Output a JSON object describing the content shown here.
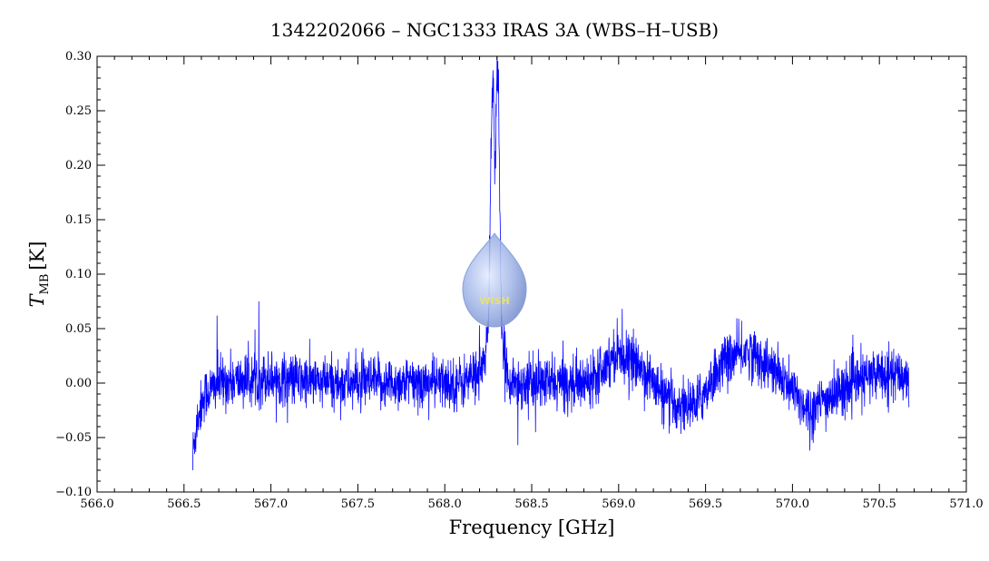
{
  "chart_data": {
    "type": "line",
    "title": "1342202066 – NGC1333 IRAS 3A (WBS–H–USB)",
    "xlabel": "Frequency [GHz]",
    "ylabel_main": "T",
    "ylabel_sub": "MB",
    "ylabel_unit": "[K]",
    "xlim": [
      566.0,
      571.0
    ],
    "ylim": [
      -0.1,
      0.3
    ],
    "x_ticks": [
      "566.0",
      "566.5",
      "567.0",
      "567.5",
      "568.0",
      "568.5",
      "569.0",
      "569.5",
      "570.0",
      "570.5",
      "571.0"
    ],
    "y_ticks": [
      "−0.10",
      "−0.05",
      "0.00",
      "0.05",
      "0.10",
      "0.15",
      "0.20",
      "0.25",
      "0.30"
    ],
    "series": [
      {
        "color": "#0000ff",
        "x_range": [
          566.55,
          570.67
        ],
        "baseline_points": [
          [
            566.55,
            -0.065
          ],
          [
            566.58,
            -0.03
          ],
          [
            566.62,
            -0.01
          ],
          [
            566.7,
            0.0
          ],
          [
            567.0,
            0.005
          ],
          [
            567.3,
            0.0
          ],
          [
            567.6,
            0.0
          ],
          [
            567.9,
            0.0
          ],
          [
            568.1,
            0.0
          ],
          [
            568.2,
            0.01
          ],
          [
            568.25,
            0.0
          ],
          [
            568.4,
            0.0
          ],
          [
            568.6,
            0.0
          ],
          [
            568.8,
            0.0
          ],
          [
            569.0,
            0.03
          ],
          [
            569.15,
            0.01
          ],
          [
            569.3,
            -0.02
          ],
          [
            569.45,
            -0.02
          ],
          [
            569.6,
            0.02
          ],
          [
            569.75,
            0.03
          ],
          [
            569.9,
            0.01
          ],
          [
            570.1,
            -0.025
          ],
          [
            570.3,
            -0.005
          ],
          [
            570.5,
            0.01
          ],
          [
            570.67,
            0.005
          ]
        ],
        "peaks": [
          {
            "center": 568.275,
            "amplitude": 0.225,
            "width": 0.012
          },
          {
            "center": 568.305,
            "amplitude": 0.235,
            "width": 0.01
          },
          {
            "center": 568.29,
            "amplitude": 0.05,
            "width": 0.04
          }
        ],
        "dips": [
          {
            "center": 568.29,
            "depth": -0.06,
            "width": 0.003
          }
        ],
        "noise_rms": 0.012,
        "spikes": [
          {
            "x": 566.93,
            "y": 0.075
          },
          {
            "x": 566.69,
            "y": 0.062
          },
          {
            "x": 568.2,
            "y": 0.053
          },
          {
            "x": 568.42,
            "y": -0.057
          },
          {
            "x": 570.1,
            "y": -0.062
          },
          {
            "x": 566.55,
            "y": -0.08
          }
        ]
      }
    ],
    "grid": false,
    "legend": "none"
  },
  "watermark": {
    "text": "WISH",
    "color": "#a9bde8"
  }
}
